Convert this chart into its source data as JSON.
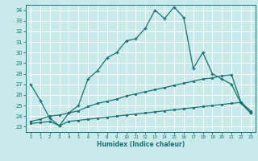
{
  "xlabel": "Humidex (Indice chaleur)",
  "bg_color": "#c8eaea",
  "grid_color": "#ffffff",
  "line_color": "#1a7070",
  "xlim": [
    -0.5,
    23.5
  ],
  "ylim": [
    22.5,
    34.5
  ],
  "xticks": [
    0,
    1,
    2,
    3,
    4,
    5,
    6,
    7,
    8,
    9,
    10,
    11,
    12,
    13,
    14,
    15,
    16,
    17,
    18,
    19,
    20,
    21,
    22,
    23
  ],
  "yticks": [
    23,
    24,
    25,
    26,
    27,
    28,
    29,
    30,
    31,
    32,
    33,
    34
  ],
  "series1_x": [
    0,
    1,
    2,
    3,
    4,
    5,
    6,
    7,
    8,
    9,
    10,
    11,
    12,
    13,
    14,
    15,
    16,
    17,
    18,
    19,
    20,
    21,
    22,
    23
  ],
  "series1_y": [
    27.0,
    25.5,
    23.8,
    23.1,
    24.3,
    25.0,
    27.5,
    28.3,
    29.5,
    30.0,
    31.1,
    31.3,
    32.3,
    34.0,
    33.2,
    34.3,
    33.3,
    28.5,
    30.0,
    28.0,
    27.5,
    27.0,
    25.2,
    24.3
  ],
  "series2_x": [
    0,
    1,
    2,
    3,
    4,
    5,
    6,
    7,
    8,
    9,
    10,
    11,
    12,
    13,
    14,
    15,
    16,
    17,
    18,
    19,
    20,
    21,
    22,
    23
  ],
  "series2_y": [
    23.5,
    23.7,
    24.0,
    24.1,
    24.3,
    24.5,
    24.9,
    25.2,
    25.4,
    25.6,
    25.9,
    26.1,
    26.3,
    26.5,
    26.7,
    26.9,
    27.1,
    27.3,
    27.5,
    27.6,
    27.8,
    27.9,
    25.3,
    24.3
  ],
  "series3_x": [
    0,
    1,
    2,
    3,
    4,
    5,
    6,
    7,
    8,
    9,
    10,
    11,
    12,
    13,
    14,
    15,
    16,
    17,
    18,
    19,
    20,
    21,
    22,
    23
  ],
  "series3_y": [
    23.3,
    23.4,
    23.5,
    23.1,
    23.5,
    23.6,
    23.7,
    23.8,
    23.9,
    24.0,
    24.1,
    24.2,
    24.3,
    24.4,
    24.5,
    24.6,
    24.7,
    24.8,
    24.9,
    25.0,
    25.1,
    25.2,
    25.3,
    24.5
  ]
}
